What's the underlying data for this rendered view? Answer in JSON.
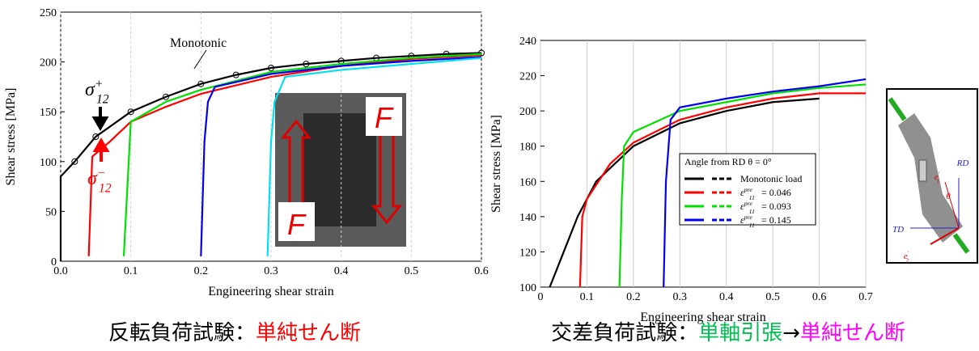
{
  "chart_data": [
    {
      "type": "line",
      "xlabel": "Engineering shear strain",
      "ylabel": "Shear stress [MPa]",
      "xlim": [
        0,
        0.6
      ],
      "ylim": [
        0,
        250
      ],
      "xticks": [
        {
          "value": 0,
          "label": "0.0"
        },
        0.1,
        0.2,
        0.3,
        0.4,
        0.5,
        0.6
      ],
      "yticks": [
        0,
        50,
        100,
        150,
        200,
        250
      ],
      "series": [
        {
          "color": "#000000",
          "marker": "circle",
          "x": [
            0,
            0,
            0.02,
            0.05,
            0.1,
            0.15,
            0.2,
            0.25,
            0.3,
            0.35,
            0.4,
            0.45,
            0.5,
            0.55,
            0.6
          ],
          "values": [
            0,
            85,
            100,
            125,
            150,
            165,
            178,
            187,
            194,
            198,
            201,
            204,
            206,
            208,
            209
          ]
        },
        {
          "color": "#ff0000",
          "x": [
            0.04,
            0.045,
            0.07,
            0.1,
            0.15,
            0.2,
            0.3,
            0.4,
            0.5,
            0.6
          ],
          "values": [
            5,
            105,
            120,
            140,
            155,
            168,
            185,
            196,
            203,
            207
          ]
        },
        {
          "color": "#00e000",
          "x": [
            0.09,
            0.1,
            0.15,
            0.2,
            0.3,
            0.4,
            0.5,
            0.6
          ],
          "values": [
            5,
            140,
            160,
            172,
            190,
            198,
            204,
            208
          ]
        },
        {
          "color": "#0000ee",
          "x": [
            0.2,
            0.205,
            0.21,
            0.22,
            0.3,
            0.4,
            0.5,
            0.6
          ],
          "values": [
            5,
            120,
            160,
            175,
            188,
            196,
            201,
            205
          ]
        },
        {
          "color": "#00e0f0",
          "x": [
            0.295,
            0.3,
            0.305,
            0.32,
            0.4,
            0.5,
            0.6
          ],
          "values": [
            5,
            120,
            160,
            185,
            192,
            198,
            204
          ]
        }
      ],
      "annotations": [
        {
          "text": "Monotonic"
        },
        {
          "base": "σ",
          "sub": "12",
          "sup": "+",
          "color": "#000000"
        },
        {
          "base": "σ",
          "sub": "12",
          "sup": "−",
          "color": "#ff0000"
        }
      ],
      "inset_labels": [
        "F",
        "F"
      ]
    },
    {
      "type": "line",
      "xlabel": "Engineering shear strain",
      "ylabel": "Shear stress [MPa]",
      "xlim": [
        0,
        0.7
      ],
      "ylim": [
        100,
        240
      ],
      "xticks": [
        0,
        0.1,
        0.2,
        0.3,
        0.4,
        0.5,
        0.6,
        0.7
      ],
      "yticks": [
        100,
        120,
        140,
        160,
        180,
        200,
        220,
        240
      ],
      "legend_title": "Angle from RD θ = 0°",
      "series": [
        {
          "name": "Monotonic load",
          "color": "#000000",
          "x": [
            0.02,
            0.05,
            0.08,
            0.12,
            0.2,
            0.3,
            0.4,
            0.5,
            0.6
          ],
          "values": [
            100,
            120,
            140,
            160,
            180,
            193,
            200,
            205,
            207
          ]
        },
        {
          "name": "= 0.046",
          "name_symbol": {
            "base": "ε",
            "sub": "11",
            "sup": "pre"
          },
          "color": "#ff0000",
          "x": [
            0.085,
            0.09,
            0.1,
            0.15,
            0.2,
            0.3,
            0.4,
            0.5,
            0.6,
            0.7
          ],
          "values": [
            100,
            140,
            150,
            170,
            182,
            195,
            202,
            207,
            210,
            210
          ]
        },
        {
          "name": "= 0.093",
          "name_symbol": {
            "base": "ε",
            "sub": "11",
            "sup": "pre"
          },
          "color": "#00e000",
          "x": [
            0.17,
            0.175,
            0.18,
            0.2,
            0.3,
            0.4,
            0.5,
            0.6,
            0.7
          ],
          "values": [
            100,
            150,
            180,
            188,
            200,
            205,
            210,
            213,
            215
          ]
        },
        {
          "name": "= 0.145",
          "name_symbol": {
            "base": "ε",
            "sub": "11",
            "sup": "pre"
          },
          "color": "#0000ee",
          "x": [
            0.265,
            0.27,
            0.28,
            0.3,
            0.4,
            0.5,
            0.6,
            0.7
          ],
          "values": [
            100,
            160,
            195,
            202,
            207,
            211,
            214,
            218
          ]
        }
      ],
      "diagram_labels": [
        {
          "base": "RD"
        },
        {
          "base": "TD"
        },
        {
          "base": "θ"
        },
        {
          "base": "e",
          "sub": "1",
          "sup": "′"
        },
        {
          "base": "e",
          "sub": "2",
          "sup": "′"
        }
      ]
    }
  ],
  "captions": [
    [
      {
        "text": "反転負荷試験：",
        "color": "#000000"
      },
      {
        "text": "単純せん断",
        "color": "#ff0000"
      }
    ],
    [
      {
        "text": "交差負荷試験：",
        "color": "#000000"
      },
      {
        "text": "単軸引張",
        "color": "#00c050"
      },
      {
        "text": "→",
        "color": "#000000"
      },
      {
        "text": "単純せん断",
        "color": "#ff00ff"
      }
    ]
  ]
}
